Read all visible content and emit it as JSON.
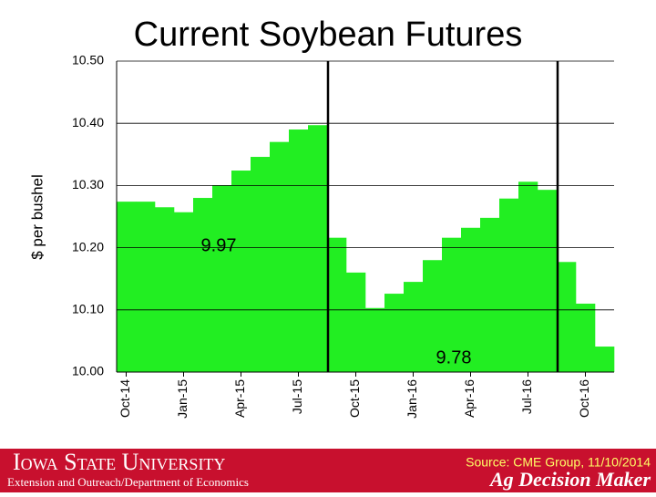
{
  "chart_data": {
    "type": "bar",
    "title": "Current Soybean Futures",
    "y_label": "$ per bushel",
    "categories": [
      "Oct-14",
      null,
      null,
      "Jan-15",
      null,
      null,
      "Apr-15",
      null,
      null,
      "Jul-15",
      null,
      null,
      "Oct-15",
      null,
      null,
      "Jan-16",
      null,
      null,
      "Apr-16",
      null,
      null,
      "Jul-16",
      null,
      null,
      "Oct-16",
      null
    ],
    "values": [
      10.274,
      10.274,
      10.265,
      10.257,
      10.28,
      10.3,
      10.324,
      10.346,
      10.37,
      10.39,
      10.397,
      10.216,
      10.16,
      10.103,
      10.126,
      10.145,
      10.18,
      10.216,
      10.232,
      10.248,
      10.279,
      10.306,
      10.293,
      10.177,
      10.11,
      10.041
    ],
    "color": "#22ee22",
    "ylim": [
      10,
      10.5
    ],
    "yticks": [
      {
        "value": 10,
        "label": "10.00"
      },
      {
        "value": 10.1,
        "label": "10.10"
      },
      {
        "value": 10.2,
        "label": "10.20"
      },
      {
        "value": 10.3,
        "label": "10.30"
      },
      {
        "value": 10.4,
        "label": "10.40"
      },
      {
        "value": 10.5,
        "label": "10.50"
      }
    ],
    "grid": true,
    "annotations": [
      "9.97",
      "9.78"
    ]
  },
  "footer": {
    "university": "Iowa State University",
    "department": "Extension and Outreach/Department of Economics",
    "source": "Source: CME Group, 11/10/2014",
    "brand": "Ag Decision Maker"
  }
}
